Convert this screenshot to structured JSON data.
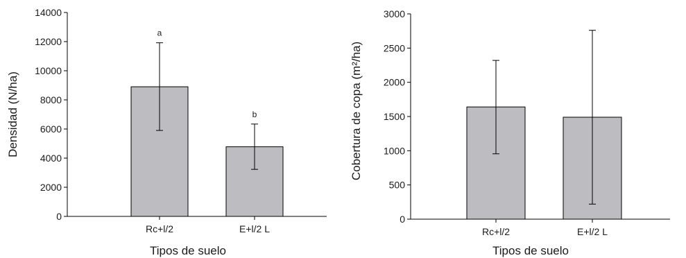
{
  "chart_data": [
    {
      "type": "bar",
      "categories": [
        "Rc+l/2",
        "E+l/2 L"
      ],
      "values": [
        8900,
        4780
      ],
      "error_low": [
        5900,
        3230
      ],
      "error_high": [
        11920,
        6340
      ],
      "significance_labels": [
        "a",
        "b"
      ],
      "title": "",
      "xlabel": "Tipos de suelo",
      "ylabel": "Densidad (N/ha)",
      "ylim": [
        0,
        14000
      ],
      "yticks": [
        "0",
        "2000",
        "4000",
        "6000",
        "8000",
        "10000",
        "12000",
        "14000"
      ],
      "grid": false,
      "bar_color": "#bdbdc1"
    },
    {
      "type": "bar",
      "categories": [
        "Rc+l/2",
        "E+l/2 L"
      ],
      "values": [
        1640,
        1490
      ],
      "error_low": [
        955,
        220
      ],
      "error_high": [
        2320,
        2760
      ],
      "significance_labels": [],
      "title": "",
      "xlabel": "Tipos de suelo",
      "ylabel": "Cobertura de copa (m²/ha)",
      "ylim": [
        0,
        3000
      ],
      "yticks": [
        "0",
        "500",
        "1000",
        "1500",
        "2000",
        "2500",
        "3000"
      ],
      "grid": false,
      "bar_color": "#bdbdc1"
    }
  ]
}
